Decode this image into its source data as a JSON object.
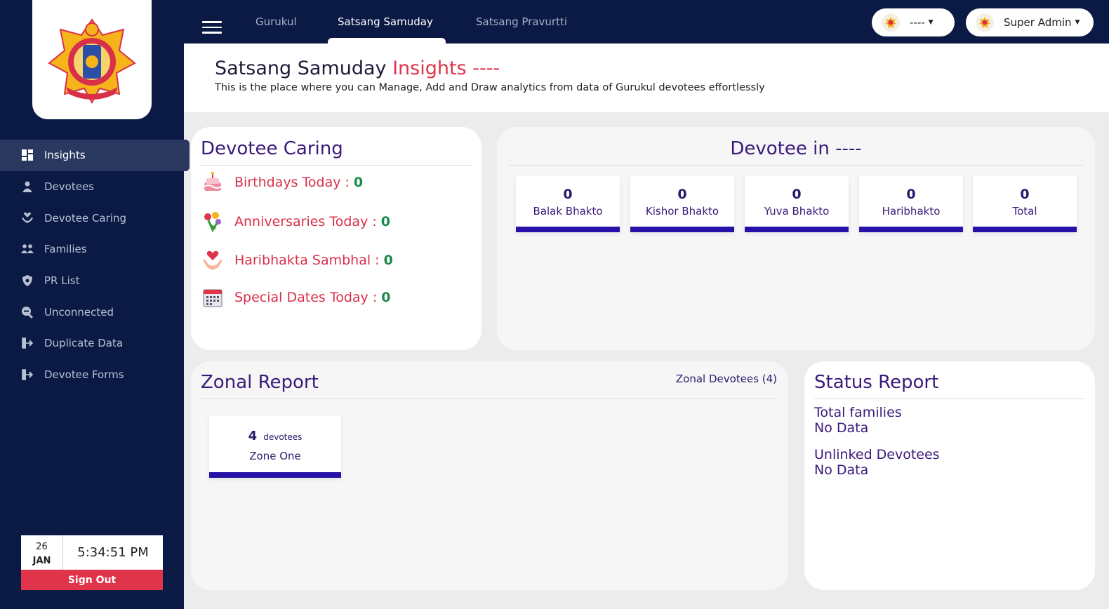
{
  "sidebar": {
    "items": [
      {
        "label": "Insights",
        "icon": "grid-icon",
        "active": true
      },
      {
        "label": "Devotees",
        "icon": "devotee-icon"
      },
      {
        "label": "Devotee Caring",
        "icon": "caring-icon"
      },
      {
        "label": "Families",
        "icon": "family-icon"
      },
      {
        "label": "PR List",
        "icon": "shield-icon"
      },
      {
        "label": "Unconnected",
        "icon": "search-icon"
      },
      {
        "label": "Duplicate Data",
        "icon": "export-icon"
      },
      {
        "label": "Devotee Forms",
        "icon": "export-icon"
      }
    ],
    "clock": {
      "day": "26",
      "month": "JAN",
      "time": "5:34:51 PM"
    },
    "signout_label": "Sign Out"
  },
  "topbar": {
    "tabs": [
      "Gurukul",
      "Satsang Samuday",
      "Satsang Pravurtti"
    ],
    "active_tab": "Satsang Samuday",
    "location_select": "----",
    "user_name": "Super Admin"
  },
  "header": {
    "title_main": "Satsang Samuday",
    "title_accent": "Insights ----",
    "subtitle": "This is the place where you can Manage, Add and Draw analytics from data of Gurukul devotees effortlessly"
  },
  "devotee_caring": {
    "title": "Devotee Caring",
    "rows": [
      {
        "label": "Birthdays Today :",
        "count": "0",
        "icon": "cake-icon"
      },
      {
        "label": "Anniversaries Today :",
        "count": "0",
        "icon": "flowers-icon"
      },
      {
        "label": "Haribhakta Sambhal :",
        "count": "0",
        "icon": "heart-hands-icon"
      },
      {
        "label": "Special Dates Today :",
        "count": "0",
        "icon": "calendar-icon"
      }
    ]
  },
  "devotee_in": {
    "title": "Devotee in ----",
    "stats": [
      {
        "value": "0",
        "label": "Balak Bhakto"
      },
      {
        "value": "0",
        "label": "Kishor Bhakto"
      },
      {
        "value": "0",
        "label": "Yuva Bhakto"
      },
      {
        "value": "0",
        "label": "Haribhakto"
      },
      {
        "value": "0",
        "label": "Total"
      }
    ]
  },
  "zonal_report": {
    "title": "Zonal Report",
    "link": "Zonal Devotees (4)",
    "zones": [
      {
        "count": "4",
        "unit": "devotees",
        "name": "Zone One"
      }
    ]
  },
  "status_report": {
    "title": "Status Report",
    "items": [
      {
        "label": "Total families",
        "value": "No Data"
      },
      {
        "label": "Unlinked Devotees",
        "value": "No Data"
      }
    ]
  },
  "colors": {
    "navy": "#0b1a45",
    "accent_red": "#e0344a",
    "purple": "#3a1a7a",
    "bar": "#2612a6",
    "green": "#1a8a4a"
  }
}
